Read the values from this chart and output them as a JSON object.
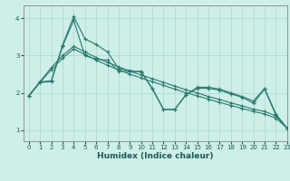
{
  "xlabel": "Humidex (Indice chaleur)",
  "ylabel": "",
  "bg_color": "#ceeee8",
  "grid_color": "#aad8d2",
  "line_color": "#2a7a6e",
  "xlim": [
    -0.5,
    23
  ],
  "ylim": [
    0.7,
    4.35
  ],
  "yticks": [
    1,
    2,
    3,
    4
  ],
  "xticks": [
    0,
    1,
    2,
    3,
    4,
    5,
    6,
    7,
    8,
    9,
    10,
    11,
    12,
    13,
    14,
    15,
    16,
    17,
    18,
    19,
    20,
    21,
    22,
    23
  ],
  "series": [
    {
      "x": [
        0,
        1,
        2,
        3,
        4,
        5,
        6,
        7,
        8,
        9,
        10,
        11,
        12,
        13,
        14,
        15,
        16,
        17,
        18,
        19,
        20,
        21,
        22,
        23
      ],
      "y": [
        1.92,
        2.3,
        2.32,
        3.28,
        4.05,
        3.45,
        3.3,
        3.1,
        2.65,
        2.6,
        2.56,
        2.12,
        1.55,
        1.55,
        1.95,
        2.15,
        2.15,
        2.1,
        2.0,
        1.9,
        1.78,
        2.12,
        1.43,
        1.05
      ]
    },
    {
      "x": [
        0,
        1,
        2,
        3,
        4,
        5,
        6,
        7,
        8,
        9,
        10,
        11,
        12,
        13,
        14,
        15,
        16,
        17,
        18,
        19,
        20,
        21,
        22,
        23
      ],
      "y": [
        1.92,
        2.28,
        2.3,
        3.25,
        3.95,
        3.0,
        2.9,
        2.88,
        2.58,
        2.57,
        2.58,
        2.1,
        1.55,
        1.56,
        1.95,
        2.12,
        2.12,
        2.07,
        1.97,
        1.88,
        1.72,
        2.1,
        1.4,
        1.05
      ]
    },
    {
      "x": [
        0,
        1,
        2,
        3,
        4,
        5,
        6,
        7,
        8,
        9,
        10,
        11,
        12,
        13,
        14,
        15,
        16,
        17,
        18,
        19,
        20,
        21,
        22,
        23
      ],
      "y": [
        1.92,
        2.3,
        2.68,
        3.0,
        3.25,
        3.1,
        2.95,
        2.82,
        2.7,
        2.58,
        2.48,
        2.38,
        2.28,
        2.18,
        2.08,
        2.0,
        1.9,
        1.82,
        1.73,
        1.65,
        1.56,
        1.5,
        1.38,
        1.05
      ]
    },
    {
      "x": [
        0,
        1,
        2,
        3,
        4,
        5,
        6,
        7,
        8,
        9,
        10,
        11,
        12,
        13,
        14,
        15,
        16,
        17,
        18,
        19,
        20,
        21,
        22,
        23
      ],
      "y": [
        1.92,
        2.28,
        2.62,
        2.93,
        3.18,
        3.03,
        2.88,
        2.74,
        2.62,
        2.5,
        2.4,
        2.3,
        2.2,
        2.1,
        2.0,
        1.92,
        1.83,
        1.74,
        1.66,
        1.58,
        1.5,
        1.43,
        1.32,
        1.05
      ]
    }
  ]
}
